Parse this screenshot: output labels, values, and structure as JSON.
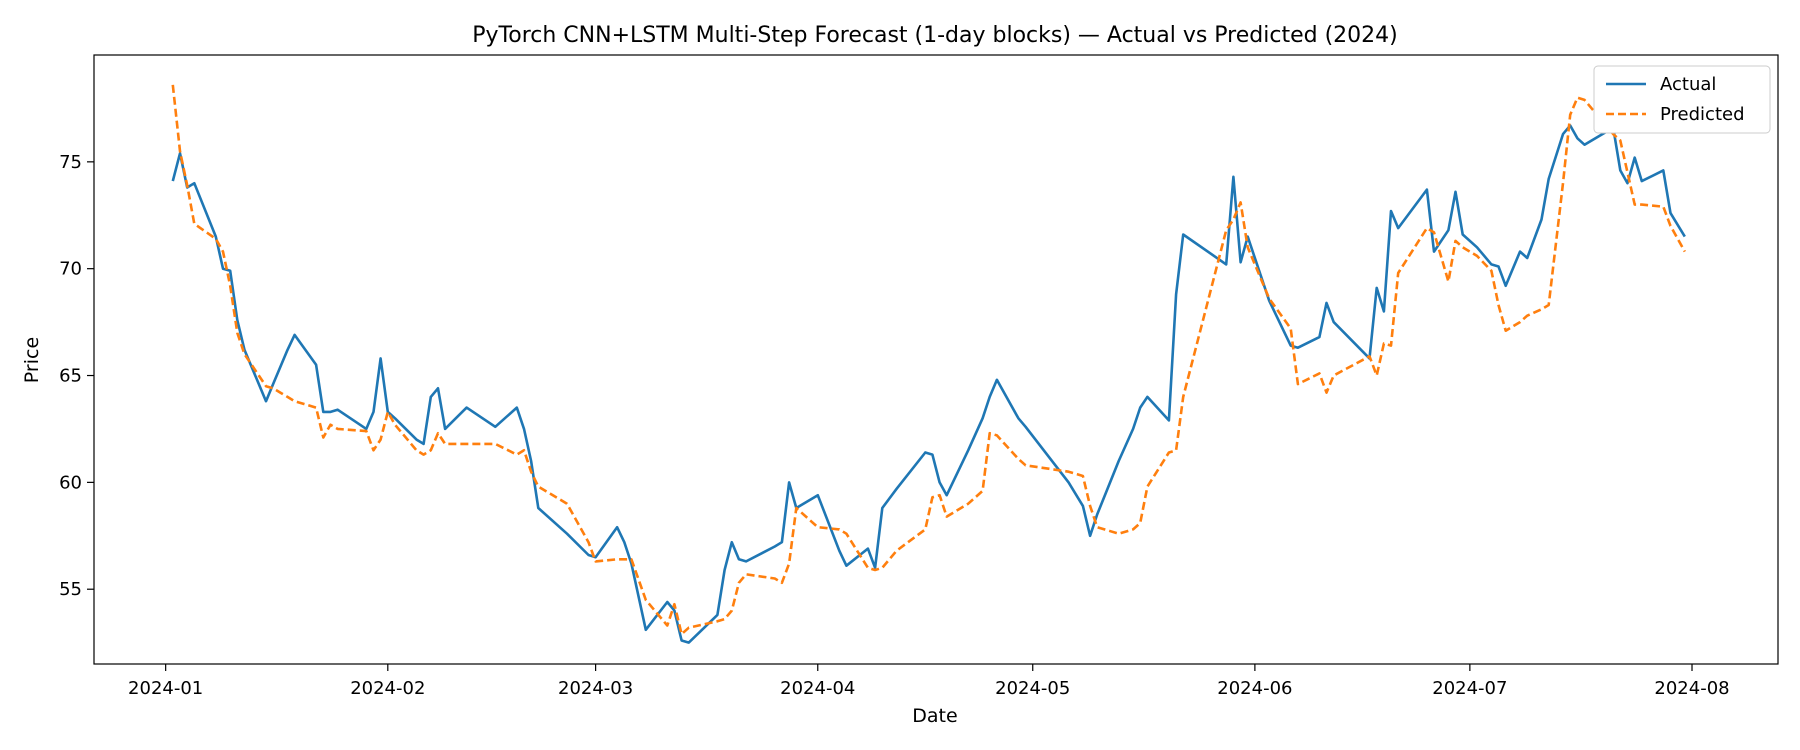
{
  "chart_data": {
    "type": "line",
    "title": "PyTorch CNN+LSTM Multi-Step Forecast (1-day blocks) — Actual vs Predicted (2024)",
    "xlabel": "Date",
    "ylabel": "Price",
    "xlim": [
      "2023-12-22",
      "2024-08-13"
    ],
    "ylim": [
      51.5,
      80.0
    ],
    "x_ticks": [
      "2024-01-01",
      "2024-02-01",
      "2024-03-01",
      "2024-04-01",
      "2024-05-01",
      "2024-06-01",
      "2024-07-01",
      "2024-08-01"
    ],
    "x_tick_labels": [
      "2024-01",
      "2024-02",
      "2024-03",
      "2024-04",
      "2024-05",
      "2024-06",
      "2024-07",
      "2024-08"
    ],
    "y_ticks": [
      55,
      60,
      65,
      70,
      75
    ],
    "y_tick_labels": [
      "55",
      "60",
      "65",
      "70",
      "75"
    ],
    "grid": false,
    "legend": "top-right",
    "colors": {
      "actual": "#1f77b4",
      "predicted": "#ff7f0e"
    },
    "series": [
      {
        "name": "Actual",
        "style": "solid",
        "points": [
          [
            "2024-01-02",
            74.1
          ],
          [
            "2024-01-03",
            75.4
          ],
          [
            "2024-01-04",
            73.8
          ],
          [
            "2024-01-05",
            74.0
          ],
          [
            "2024-01-08",
            71.5
          ],
          [
            "2024-01-09",
            70.0
          ],
          [
            "2024-01-10",
            69.9
          ],
          [
            "2024-01-11",
            67.6
          ],
          [
            "2024-01-12",
            66.2
          ],
          [
            "2024-01-15",
            63.8
          ],
          [
            "2024-01-16",
            64.6
          ],
          [
            "2024-01-17",
            65.4
          ],
          [
            "2024-01-18",
            66.2
          ],
          [
            "2024-01-19",
            66.9
          ],
          [
            "2024-01-22",
            65.5
          ],
          [
            "2024-01-23",
            63.3
          ],
          [
            "2024-01-24",
            63.3
          ],
          [
            "2024-01-25",
            63.4
          ],
          [
            "2024-01-29",
            62.5
          ],
          [
            "2024-01-30",
            63.3
          ],
          [
            "2024-01-31",
            65.8
          ],
          [
            "2024-02-01",
            63.3
          ],
          [
            "2024-02-02",
            63.0
          ],
          [
            "2024-02-05",
            62.0
          ],
          [
            "2024-02-06",
            61.8
          ],
          [
            "2024-02-07",
            64.0
          ],
          [
            "2024-02-08",
            64.4
          ],
          [
            "2024-02-09",
            62.5
          ],
          [
            "2024-02-12",
            63.5
          ],
          [
            "2024-02-16",
            62.6
          ],
          [
            "2024-02-19",
            63.5
          ],
          [
            "2024-02-20",
            62.5
          ],
          [
            "2024-02-21",
            61.0
          ],
          [
            "2024-02-22",
            58.8
          ],
          [
            "2024-02-26",
            57.6
          ],
          [
            "2024-02-29",
            56.6
          ],
          [
            "2024-03-01",
            56.5
          ],
          [
            "2024-03-04",
            57.9
          ],
          [
            "2024-03-05",
            57.2
          ],
          [
            "2024-03-06",
            56.2
          ],
          [
            "2024-03-08",
            53.1
          ],
          [
            "2024-03-11",
            54.4
          ],
          [
            "2024-03-12",
            54.0
          ],
          [
            "2024-03-13",
            52.6
          ],
          [
            "2024-03-14",
            52.5
          ],
          [
            "2024-03-18",
            53.8
          ],
          [
            "2024-03-19",
            55.9
          ],
          [
            "2024-03-20",
            57.2
          ],
          [
            "2024-03-21",
            56.4
          ],
          [
            "2024-03-22",
            56.3
          ],
          [
            "2024-03-26",
            57.0
          ],
          [
            "2024-03-27",
            57.2
          ],
          [
            "2024-03-28",
            60.0
          ],
          [
            "2024-03-29",
            58.8
          ],
          [
            "2024-04-01",
            59.4
          ],
          [
            "2024-04-04",
            56.8
          ],
          [
            "2024-04-05",
            56.1
          ],
          [
            "2024-04-08",
            56.9
          ],
          [
            "2024-04-09",
            56.0
          ],
          [
            "2024-04-10",
            58.8
          ],
          [
            "2024-04-12",
            59.7
          ],
          [
            "2024-04-16",
            61.4
          ],
          [
            "2024-04-17",
            61.3
          ],
          [
            "2024-04-18",
            60.0
          ],
          [
            "2024-04-19",
            59.4
          ],
          [
            "2024-04-22",
            61.5
          ],
          [
            "2024-04-24",
            63.0
          ],
          [
            "2024-04-25",
            64.0
          ],
          [
            "2024-04-26",
            64.8
          ],
          [
            "2024-04-29",
            63.0
          ],
          [
            "2024-04-30",
            62.6
          ],
          [
            "2024-05-06",
            60.0
          ],
          [
            "2024-05-08",
            58.9
          ],
          [
            "2024-05-09",
            57.5
          ],
          [
            "2024-05-10",
            58.5
          ],
          [
            "2024-05-13",
            61.0
          ],
          [
            "2024-05-15",
            62.5
          ],
          [
            "2024-05-16",
            63.5
          ],
          [
            "2024-05-17",
            64.0
          ],
          [
            "2024-05-20",
            62.9
          ],
          [
            "2024-05-21",
            68.8
          ],
          [
            "2024-05-22",
            71.6
          ],
          [
            "2024-05-28",
            70.2
          ],
          [
            "2024-05-29",
            74.3
          ],
          [
            "2024-05-30",
            70.3
          ],
          [
            "2024-05-31",
            71.5
          ],
          [
            "2024-06-03",
            68.5
          ],
          [
            "2024-06-06",
            66.4
          ],
          [
            "2024-06-07",
            66.3
          ],
          [
            "2024-06-10",
            66.8
          ],
          [
            "2024-06-11",
            68.4
          ],
          [
            "2024-06-12",
            67.5
          ],
          [
            "2024-06-17",
            65.8
          ],
          [
            "2024-06-18",
            69.1
          ],
          [
            "2024-06-19",
            68.0
          ],
          [
            "2024-06-20",
            72.7
          ],
          [
            "2024-06-21",
            71.9
          ],
          [
            "2024-06-25",
            73.7
          ],
          [
            "2024-06-26",
            70.8
          ],
          [
            "2024-06-28",
            71.8
          ],
          [
            "2024-06-29",
            73.6
          ],
          [
            "2024-06-30",
            71.6
          ],
          [
            "2024-07-02",
            71.0
          ],
          [
            "2024-07-04",
            70.2
          ],
          [
            "2024-07-05",
            70.1
          ],
          [
            "2024-07-06",
            69.2
          ],
          [
            "2024-07-08",
            70.8
          ],
          [
            "2024-07-09",
            70.5
          ],
          [
            "2024-07-11",
            72.3
          ],
          [
            "2024-07-12",
            74.2
          ],
          [
            "2024-07-14",
            76.3
          ],
          [
            "2024-07-15",
            76.7
          ],
          [
            "2024-07-16",
            76.1
          ],
          [
            "2024-07-17",
            75.8
          ],
          [
            "2024-07-21",
            76.6
          ],
          [
            "2024-07-22",
            74.6
          ],
          [
            "2024-07-23",
            74.0
          ],
          [
            "2024-07-24",
            75.2
          ],
          [
            "2024-07-25",
            74.1
          ],
          [
            "2024-07-28",
            74.6
          ],
          [
            "2024-07-29",
            72.6
          ],
          [
            "2024-07-31",
            71.5
          ]
        ]
      },
      {
        "name": "Predicted",
        "style": "dashed",
        "points": [
          [
            "2024-01-02",
            78.6
          ],
          [
            "2024-01-03",
            75.5
          ],
          [
            "2024-01-04",
            73.9
          ],
          [
            "2024-01-05",
            72.1
          ],
          [
            "2024-01-08",
            71.4
          ],
          [
            "2024-01-09",
            70.8
          ],
          [
            "2024-01-10",
            69.2
          ],
          [
            "2024-01-11",
            67.0
          ],
          [
            "2024-01-12",
            66.0
          ],
          [
            "2024-01-15",
            64.5
          ],
          [
            "2024-01-16",
            64.4
          ],
          [
            "2024-01-17",
            64.2
          ],
          [
            "2024-01-18",
            64.0
          ],
          [
            "2024-01-19",
            63.8
          ],
          [
            "2024-01-22",
            63.5
          ],
          [
            "2024-01-23",
            62.1
          ],
          [
            "2024-01-24",
            62.7
          ],
          [
            "2024-01-25",
            62.5
          ],
          [
            "2024-01-29",
            62.4
          ],
          [
            "2024-01-30",
            61.5
          ],
          [
            "2024-01-31",
            62.0
          ],
          [
            "2024-02-01",
            63.3
          ],
          [
            "2024-02-02",
            62.7
          ],
          [
            "2024-02-05",
            61.5
          ],
          [
            "2024-02-06",
            61.3
          ],
          [
            "2024-02-07",
            61.5
          ],
          [
            "2024-02-08",
            62.3
          ],
          [
            "2024-02-09",
            61.8
          ],
          [
            "2024-02-12",
            61.8
          ],
          [
            "2024-02-16",
            61.8
          ],
          [
            "2024-02-19",
            61.3
          ],
          [
            "2024-02-20",
            61.5
          ],
          [
            "2024-02-21",
            60.5
          ],
          [
            "2024-02-22",
            59.8
          ],
          [
            "2024-02-26",
            59.0
          ],
          [
            "2024-02-29",
            57.2
          ],
          [
            "2024-03-01",
            56.3
          ],
          [
            "2024-03-04",
            56.4
          ],
          [
            "2024-03-05",
            56.4
          ],
          [
            "2024-03-06",
            56.4
          ],
          [
            "2024-03-08",
            54.5
          ],
          [
            "2024-03-11",
            53.3
          ],
          [
            "2024-03-12",
            54.3
          ],
          [
            "2024-03-13",
            52.9
          ],
          [
            "2024-03-14",
            53.2
          ],
          [
            "2024-03-18",
            53.5
          ],
          [
            "2024-03-19",
            53.6
          ],
          [
            "2024-03-20",
            54.0
          ],
          [
            "2024-03-21",
            55.3
          ],
          [
            "2024-03-22",
            55.7
          ],
          [
            "2024-03-26",
            55.5
          ],
          [
            "2024-03-27",
            55.3
          ],
          [
            "2024-03-28",
            56.2
          ],
          [
            "2024-03-29",
            58.8
          ],
          [
            "2024-04-01",
            57.9
          ],
          [
            "2024-04-04",
            57.8
          ],
          [
            "2024-04-05",
            57.6
          ],
          [
            "2024-04-08",
            56.0
          ],
          [
            "2024-04-09",
            55.9
          ],
          [
            "2024-04-10",
            56.0
          ],
          [
            "2024-04-12",
            56.8
          ],
          [
            "2024-04-16",
            57.8
          ],
          [
            "2024-04-17",
            59.3
          ],
          [
            "2024-04-18",
            59.4
          ],
          [
            "2024-04-19",
            58.4
          ],
          [
            "2024-04-22",
            59.0
          ],
          [
            "2024-04-24",
            59.6
          ],
          [
            "2024-04-25",
            62.3
          ],
          [
            "2024-04-26",
            62.2
          ],
          [
            "2024-04-29",
            61.1
          ],
          [
            "2024-04-30",
            60.8
          ],
          [
            "2024-05-06",
            60.5
          ],
          [
            "2024-05-08",
            60.3
          ],
          [
            "2024-05-09",
            58.9
          ],
          [
            "2024-05-10",
            57.9
          ],
          [
            "2024-05-13",
            57.6
          ],
          [
            "2024-05-15",
            57.8
          ],
          [
            "2024-05-16",
            58.1
          ],
          [
            "2024-05-17",
            59.8
          ],
          [
            "2024-05-20",
            61.4
          ],
          [
            "2024-05-21",
            61.5
          ],
          [
            "2024-05-22",
            64.0
          ],
          [
            "2024-05-28",
            71.8
          ],
          [
            "2024-05-29",
            72.3
          ],
          [
            "2024-05-30",
            73.1
          ],
          [
            "2024-05-31",
            71.0
          ],
          [
            "2024-06-03",
            68.6
          ],
          [
            "2024-06-06",
            67.2
          ],
          [
            "2024-06-07",
            64.6
          ],
          [
            "2024-06-10",
            65.1
          ],
          [
            "2024-06-11",
            64.2
          ],
          [
            "2024-06-12",
            65.0
          ],
          [
            "2024-06-17",
            65.9
          ],
          [
            "2024-06-18",
            65.0
          ],
          [
            "2024-06-19",
            66.5
          ],
          [
            "2024-06-20",
            66.4
          ],
          [
            "2024-06-21",
            69.8
          ],
          [
            "2024-06-25",
            71.9
          ],
          [
            "2024-06-26",
            71.7
          ],
          [
            "2024-06-28",
            69.4
          ],
          [
            "2024-06-29",
            71.3
          ],
          [
            "2024-06-30",
            71.0
          ],
          [
            "2024-07-02",
            70.6
          ],
          [
            "2024-07-04",
            69.9
          ],
          [
            "2024-07-05",
            68.3
          ],
          [
            "2024-07-06",
            67.1
          ],
          [
            "2024-07-08",
            67.5
          ],
          [
            "2024-07-09",
            67.8
          ],
          [
            "2024-07-11",
            68.1
          ],
          [
            "2024-07-12",
            68.3
          ],
          [
            "2024-07-14",
            74.0
          ],
          [
            "2024-07-15",
            77.2
          ],
          [
            "2024-07-16",
            78.0
          ],
          [
            "2024-07-17",
            77.9
          ],
          [
            "2024-07-21",
            76.3
          ],
          [
            "2024-07-22",
            76.0
          ],
          [
            "2024-07-23",
            74.5
          ],
          [
            "2024-07-24",
            73.0
          ],
          [
            "2024-07-25",
            73.0
          ],
          [
            "2024-07-28",
            72.9
          ],
          [
            "2024-07-29",
            72.0
          ],
          [
            "2024-07-31",
            70.8
          ]
        ]
      }
    ]
  }
}
